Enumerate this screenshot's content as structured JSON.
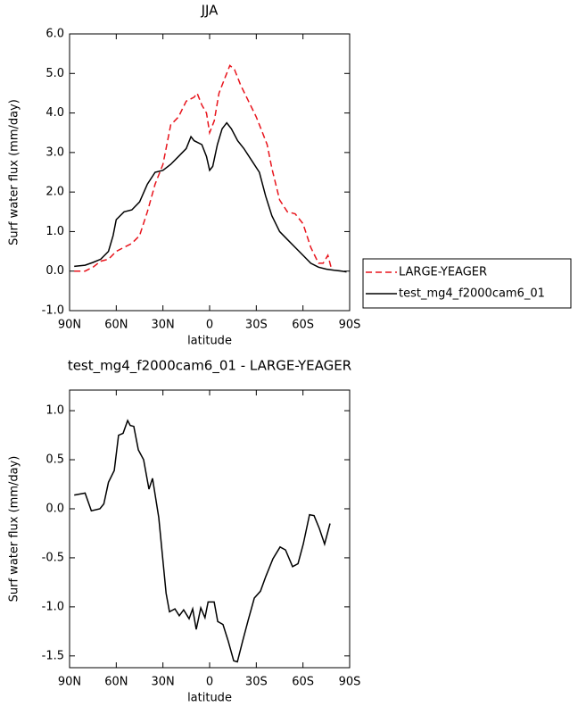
{
  "chart_data": [
    {
      "type": "line",
      "title": "JJA",
      "xlabel": "latitude",
      "ylabel": "Surf water flux (mm/day)",
      "xlim": [
        90,
        -90
      ],
      "xticks": [
        {
          "value": 90,
          "label": "90N"
        },
        {
          "value": 60,
          "label": "60N"
        },
        {
          "value": 30,
          "label": "30N"
        },
        0,
        {
          "value": -30,
          "label": "30S"
        },
        {
          "value": -60,
          "label": "60S"
        },
        {
          "value": -90,
          "label": "90S"
        }
      ],
      "ylim": [
        -1,
        6
      ],
      "yticks": [
        {
          "value": -1,
          "label": "-1.0"
        },
        {
          "value": 0,
          "label": "0.0"
        },
        {
          "value": 1,
          "label": "1.0"
        },
        {
          "value": 2,
          "label": "2.0"
        },
        {
          "value": 3,
          "label": "3.0"
        },
        {
          "value": 4,
          "label": "4.0"
        },
        {
          "value": 5,
          "label": "5.0"
        },
        {
          "value": 6,
          "label": "6.0"
        }
      ],
      "series": [
        {
          "name": "LARGE-YEAGER",
          "color": "#e8141c",
          "dashed": true,
          "x": [
            87,
            80,
            75,
            70,
            65,
            60,
            55,
            50,
            45,
            40,
            35,
            30,
            25,
            20,
            15,
            10,
            8,
            5,
            2,
            0,
            -3,
            -6,
            -10,
            -13,
            -16,
            -20,
            -25,
            -30,
            -33,
            -37,
            -40,
            -45,
            -50,
            -55,
            -60,
            -65,
            -70,
            -73,
            -76,
            -78
          ],
          "values": [
            0.0,
            0.0,
            0.1,
            0.25,
            0.3,
            0.5,
            0.6,
            0.7,
            0.9,
            1.5,
            2.2,
            2.7,
            3.7,
            3.9,
            4.3,
            4.4,
            4.5,
            4.2,
            4.0,
            3.5,
            3.8,
            4.5,
            4.9,
            5.2,
            5.1,
            4.7,
            4.3,
            3.9,
            3.6,
            3.2,
            2.6,
            1.8,
            1.5,
            1.45,
            1.2,
            0.6,
            0.2,
            0.2,
            0.4,
            0.1
          ]
        },
        {
          "name": "test_mg4_f2000cam6_01",
          "color": "#000000",
          "dashed": false,
          "x": [
            87,
            80,
            75,
            70,
            65,
            62,
            60,
            55,
            50,
            45,
            40,
            35,
            30,
            25,
            20,
            15,
            12,
            10,
            5,
            2,
            0,
            -2,
            -5,
            -8,
            -11,
            -14,
            -18,
            -22,
            -27,
            -32,
            -36,
            -40,
            -45,
            -50,
            -55,
            -60,
            -65,
            -70,
            -75,
            -80,
            -85,
            -88
          ],
          "values": [
            0.12,
            0.15,
            0.22,
            0.3,
            0.5,
            0.9,
            1.3,
            1.5,
            1.55,
            1.75,
            2.2,
            2.5,
            2.55,
            2.7,
            2.9,
            3.1,
            3.4,
            3.3,
            3.2,
            2.9,
            2.55,
            2.65,
            3.2,
            3.6,
            3.75,
            3.6,
            3.3,
            3.1,
            2.8,
            2.5,
            1.9,
            1.4,
            1.0,
            0.8,
            0.6,
            0.4,
            0.2,
            0.1,
            0.05,
            0.02,
            0.0,
            -0.02
          ]
        }
      ]
    },
    {
      "type": "line",
      "title": "test_mg4_f2000cam6_01 - LARGE-YEAGER",
      "xlabel": "latitude",
      "ylabel": "Surf water flux (mm/day)",
      "xlim": [
        90,
        -90
      ],
      "xticks": [
        {
          "value": 90,
          "label": "90N"
        },
        {
          "value": 60,
          "label": "60N"
        },
        {
          "value": 30,
          "label": "30N"
        },
        0,
        {
          "value": -30,
          "label": "30S"
        },
        {
          "value": -60,
          "label": "60S"
        },
        {
          "value": -90,
          "label": "90S"
        }
      ],
      "ylim": [
        -1.62,
        1.21
      ],
      "yticks": [
        -1.5,
        {
          "value": -1,
          "label": "-1.0"
        },
        -0.5,
        {
          "value": 0,
          "label": "0.0"
        },
        0.5,
        {
          "value": 1,
          "label": "1.0"
        }
      ],
      "series": [
        {
          "color": "#000000",
          "dashed": false,
          "x": [
            87,
            80,
            76,
            70.5,
            68,
            65,
            61.3,
            58.5,
            55.6,
            52.7,
            51,
            48.7,
            45.8,
            42.4,
            39,
            36.7,
            32.7,
            28,
            25.8,
            22.3,
            19.5,
            16.7,
            13.2,
            10.9,
            8.6,
            5.7,
            3,
            1,
            -2.9,
            -5.2,
            -8.6,
            -12,
            -15.5,
            -17.8,
            -21.2,
            -24.7,
            -28.7,
            -32.7,
            -36.1,
            -40.7,
            -45.3,
            -48.8,
            -53.3,
            -56.8,
            -60.2,
            -64.2,
            -67.1,
            -70.5,
            -73.9,
            -77.4
          ],
          "values": [
            0.14,
            0.16,
            -0.02,
            0.0,
            0.05,
            0.27,
            0.39,
            0.75,
            0.77,
            0.9,
            0.85,
            0.84,
            0.6,
            0.5,
            0.2,
            0.31,
            -0.09,
            -0.86,
            -1.05,
            -1.02,
            -1.09,
            -1.03,
            -1.12,
            -1.02,
            -1.23,
            -1.01,
            -1.11,
            -0.95,
            -0.95,
            -1.15,
            -1.18,
            -1.35,
            -1.55,
            -1.56,
            -1.35,
            -1.14,
            -0.91,
            -0.84,
            -0.69,
            -0.51,
            -0.39,
            -0.42,
            -0.59,
            -0.56,
            -0.36,
            -0.06,
            -0.07,
            -0.2,
            -0.36,
            -0.15
          ]
        }
      ]
    }
  ]
}
